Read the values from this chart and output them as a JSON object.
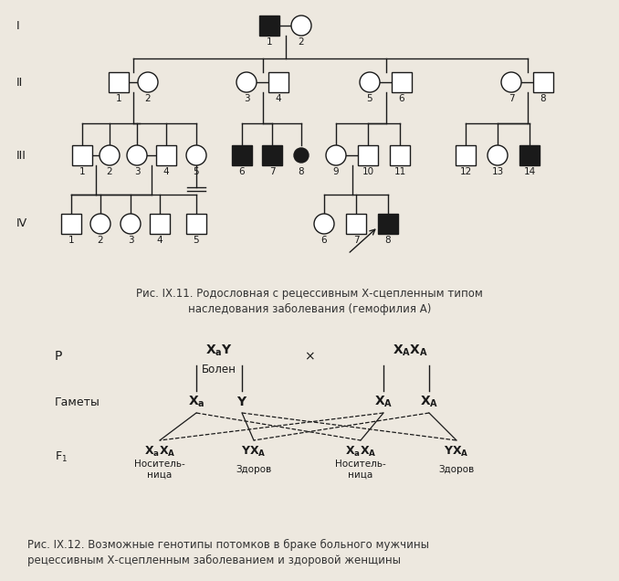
{
  "title1": "Рис. IX.11. Родословная с рецессивным Х-сцепленным типом",
  "title1b": "наследования заболевания (гемофилия А)",
  "title2": "Рис. IX.12. Возможные генотипы потомков в браке больного мужчины",
  "title2b": "рецессивным Х-сцепленным заболеванием и здоровой женщины",
  "bg_color": "#ede8df",
  "line_color": "#1a1a1a",
  "affected_color": "#1a1a1a",
  "normal_color": "#ffffff"
}
